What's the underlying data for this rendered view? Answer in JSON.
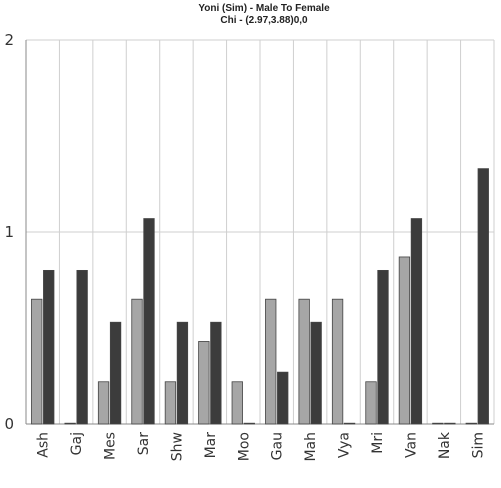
{
  "chart_data": {
    "type": "bar",
    "title": "Yoni (Sim) - Male To Female",
    "subtitle": "Chi - (2.97,3.88)0,0",
    "xlabel": "",
    "ylabel": "",
    "ylim": [
      0,
      2
    ],
    "yticks": [
      "0",
      "1",
      "2"
    ],
    "grid": true,
    "categories": [
      "Ash",
      "Gaj",
      "Mes",
      "Sar",
      "Shw",
      "Mar",
      "Moo",
      "Gau",
      "Mah",
      "Vya",
      "Mri",
      "Van",
      "Nak",
      "Sim"
    ],
    "series": [
      {
        "values": [
          0.65,
          0.0,
          0.22,
          0.65,
          0.22,
          0.43,
          0.22,
          0.65,
          0.65,
          0.65,
          0.22,
          0.87,
          0.0,
          0.0
        ],
        "color": "#a6a6a6"
      },
      {
        "values": [
          0.8,
          0.8,
          0.53,
          1.07,
          0.53,
          0.53,
          0.0,
          0.27,
          0.53,
          0.0,
          0.8,
          1.07,
          0.0,
          1.33
        ],
        "color": "#3c3c3c"
      }
    ]
  }
}
